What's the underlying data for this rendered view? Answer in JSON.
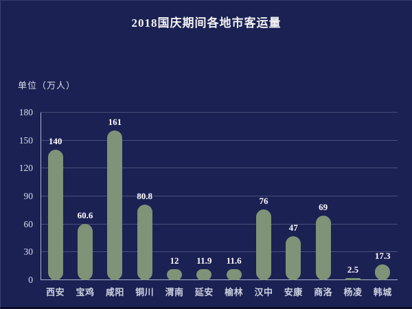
{
  "title": "2018国庆期间各地市客运量",
  "unit_label": "单位（万人）",
  "colors": {
    "background": "#1b2153",
    "bar_color": "#7e9377",
    "title_color": "#f2f2f2",
    "value_label_color": "#ffffff",
    "tick_label_color": "#d9dde8",
    "category_label_color": "#ccd2df",
    "grid_line_color": "#434c7d",
    "axis_line_color": "#aeb5cf"
  },
  "chart_data": {
    "type": "bar",
    "title": "2018国庆期间各地市客运量",
    "categories": [
      "西安",
      "宝鸡",
      "咸阳",
      "铜川",
      "渭南",
      "延安",
      "榆林",
      "汉中",
      "安康",
      "商洛",
      "杨凌",
      "韩城"
    ],
    "values": [
      140,
      60.6,
      161,
      80.8,
      12,
      11.9,
      11.6,
      76,
      47,
      69,
      2.5,
      17.3
    ],
    "xlabel": "",
    "ylabel": "单位（万人）",
    "ylim": [
      0,
      180
    ],
    "yticks": [
      0,
      30,
      60,
      90,
      120,
      150,
      180
    ],
    "grid": true,
    "legend_position": "none",
    "value_labels_shown": true
  }
}
